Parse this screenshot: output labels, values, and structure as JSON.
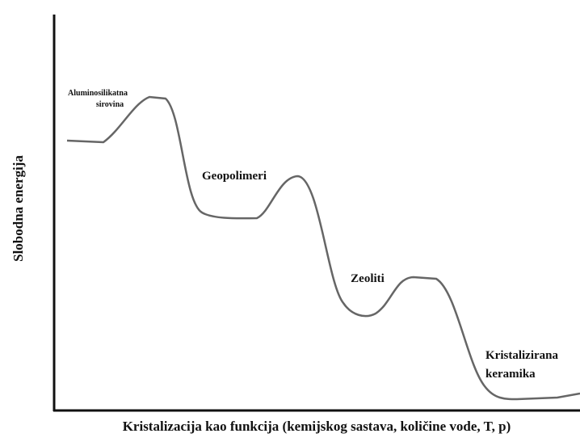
{
  "axes": {
    "y_label": "Slobodna energija",
    "x_label": "Kristalizacija kao funkcija (kemijskog sastava, količine vode, T, p)"
  },
  "labels": [
    {
      "lines": [
        "Aluminosilikatna",
        "sirovina"
      ]
    },
    {
      "lines": [
        "Geopolimeri"
      ]
    },
    {
      "lines": [
        "Zeoliti"
      ]
    },
    {
      "lines": [
        "Kristalizirana",
        "keramika"
      ]
    }
  ]
}
